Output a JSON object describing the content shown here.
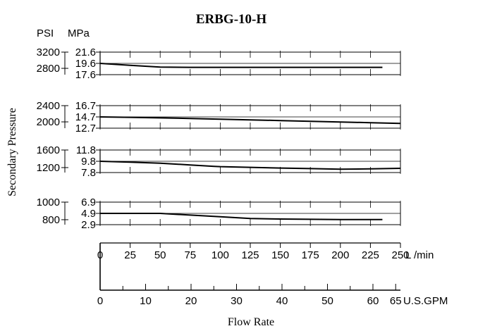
{
  "chart_data": {
    "type": "line",
    "title": "ERBG-10-H",
    "ylabel": "Secondary Pressure",
    "xlabel": "Flow Rate",
    "unit_psi": "PSI",
    "unit_mpa": "MPa",
    "x_unit_lmin": "L /min",
    "x_unit_gpm": "U.S.GPM",
    "x_lmin_ticks": [
      "0",
      "25",
      "50",
      "75",
      "100",
      "125",
      "150",
      "175",
      "200",
      "225",
      "250"
    ],
    "x_gpm_ticks": [
      "0",
      "10",
      "20",
      "30",
      "40",
      "50",
      "60",
      "65"
    ],
    "xlim": [
      0,
      250
    ],
    "grid": true,
    "panels": [
      {
        "mpa_ticks": [
          "21.6",
          "19.6",
          "17.6"
        ],
        "psi_ticks": [
          "3200",
          "2800"
        ],
        "ylim": [
          17.6,
          21.6
        ],
        "series": [
          {
            "x": [
              0,
              25,
              50,
              75,
              100,
              125,
              150,
              175,
              200,
              225,
              235
            ],
            "y": [
              19.6,
              19.25,
              18.95,
              18.9,
              18.9,
              18.9,
              18.9,
              18.9,
              18.9,
              18.9,
              18.9
            ]
          }
        ]
      },
      {
        "mpa_ticks": [
          "16.7",
          "14.7",
          "12.7"
        ],
        "psi_ticks": [
          "2400",
          "2000"
        ],
        "ylim": [
          12.7,
          16.7
        ],
        "series": [
          {
            "x": [
              0,
              25,
              50,
              75,
              100,
              125,
              150,
              175,
              200,
              225,
              250
            ],
            "y": [
              14.7,
              14.62,
              14.52,
              14.42,
              14.3,
              14.18,
              14.05,
              13.92,
              13.8,
              13.68,
              13.55
            ]
          }
        ]
      },
      {
        "mpa_ticks": [
          "11.8",
          "9.8",
          "7.8"
        ],
        "psi_ticks": [
          "1600",
          "1200"
        ],
        "ylim": [
          7.8,
          11.8
        ],
        "series": [
          {
            "x": [
              0,
              25,
              50,
              75,
              95,
              100,
              125,
              150,
              175,
              200,
              225,
              250
            ],
            "y": [
              9.8,
              9.65,
              9.45,
              9.15,
              8.9,
              8.85,
              8.72,
              8.6,
              8.5,
              8.4,
              8.45,
              8.55
            ]
          }
        ]
      },
      {
        "mpa_ticks": [
          "6.9",
          "4.9",
          "2.9"
        ],
        "psi_ticks": [
          "1000",
          "800"
        ],
        "ylim": [
          2.9,
          6.9
        ],
        "series": [
          {
            "x": [
              0,
              25,
              50,
              75,
              100,
              125,
              150,
              175,
              200,
              225,
              235
            ],
            "y": [
              4.9,
              4.9,
              4.9,
              4.6,
              4.3,
              4.0,
              3.9,
              3.85,
              3.8,
              3.8,
              3.8
            ]
          }
        ]
      }
    ]
  }
}
